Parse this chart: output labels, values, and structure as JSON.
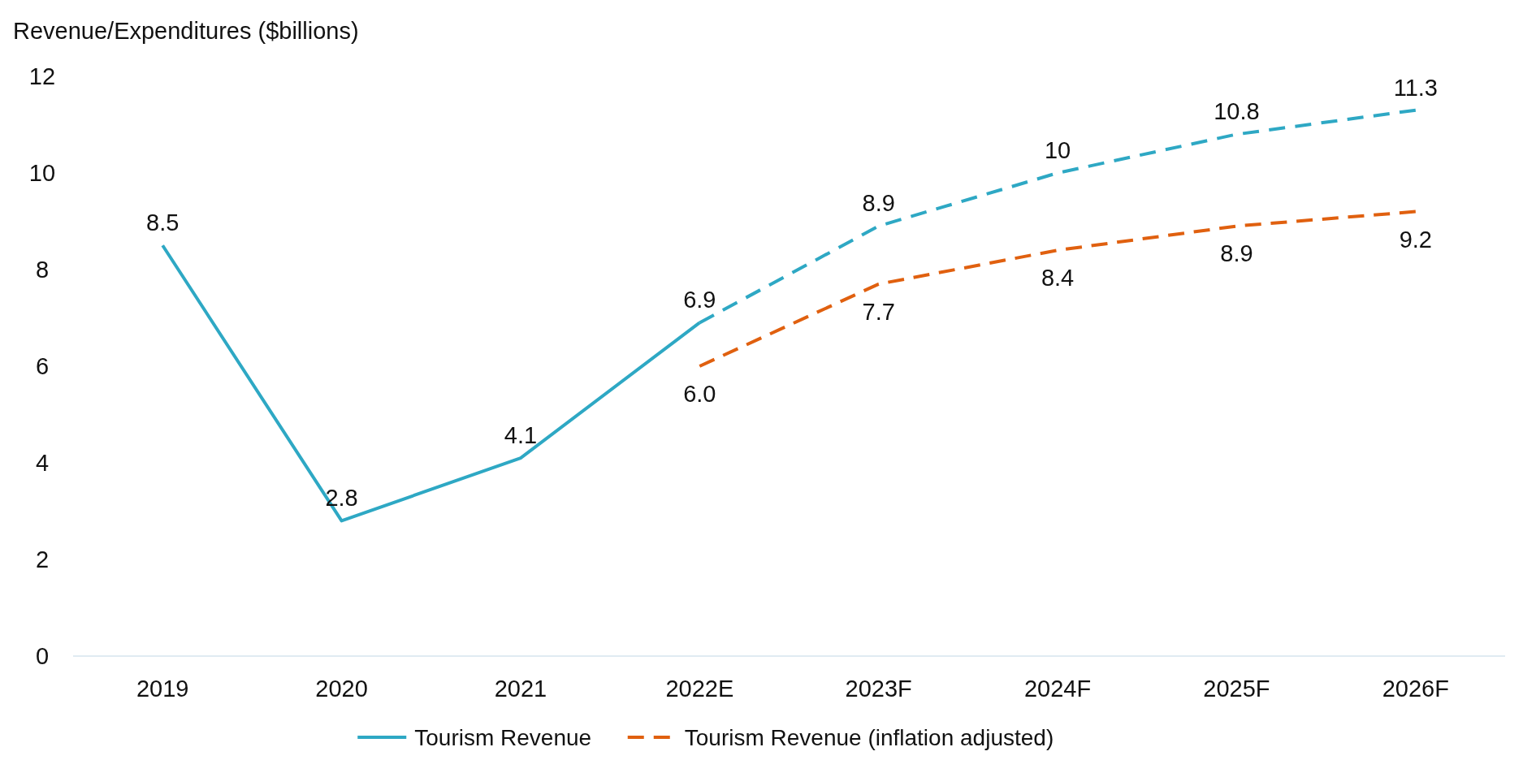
{
  "chart_data": {
    "type": "line",
    "ylabel": "Revenue/Expenditures ($billions)",
    "categories": [
      "2019",
      "2020",
      "2021",
      "2022E",
      "2023F",
      "2024F",
      "2025F",
      "2026F"
    ],
    "ylim": [
      0,
      12
    ],
    "yticks": [
      0,
      2,
      4,
      6,
      8,
      10,
      12
    ],
    "legend": "bottom",
    "series": [
      {
        "name": "Tourism Revenue",
        "color": "#2ea8c4",
        "line_style": "solid",
        "values": [
          8.5,
          2.8,
          4.1,
          6.9,
          null,
          null,
          null,
          null
        ],
        "value_labels": [
          "8.5",
          "2.8",
          "4.1",
          "6.9",
          null,
          null,
          null,
          null
        ]
      },
      {
        "color": "#2ea8c4",
        "line_style": "dashed",
        "values": [
          null,
          null,
          null,
          6.9,
          8.9,
          10,
          10.8,
          11.3
        ],
        "value_labels": [
          null,
          null,
          null,
          null,
          "8.9",
          "10",
          "10.8",
          "11.3"
        ]
      },
      {
        "name": "Tourism Revenue (inflation adjusted)",
        "color": "#e0600f",
        "line_style": "dashed",
        "values": [
          null,
          null,
          null,
          6.0,
          7.7,
          8.4,
          8.9,
          9.2
        ],
        "value_labels": [
          null,
          null,
          null,
          "6.0",
          "7.7",
          "8.4",
          "8.9",
          "9.2"
        ]
      }
    ]
  }
}
